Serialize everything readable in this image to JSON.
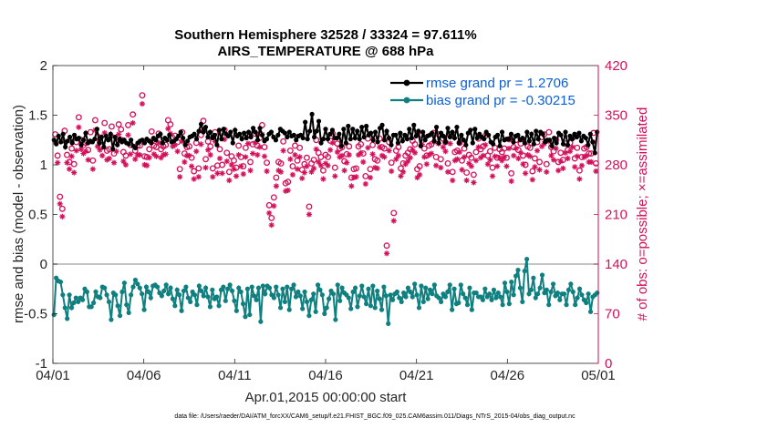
{
  "chart_data": {
    "type": "line",
    "title_line1": "Southern Hemisphere 32528 / 33324 = 97.611%",
    "title_line2": "AIRS_TEMPERATURE @ 688 hPa",
    "xlabel": "Apr.01,2015 00:00:00 start",
    "ylabel_left": "rmse and bias (model - observation)",
    "ylabel_right": "# of obs: o=possible; ×=assimilated",
    "ylim_left": [
      -1,
      2
    ],
    "ylim_right": [
      0,
      420
    ],
    "xlim": [
      0,
      30
    ],
    "x_ticks": [
      0,
      5,
      10,
      15,
      20,
      25,
      30
    ],
    "x_tick_labels": [
      "04/01",
      "04/06",
      "04/11",
      "04/16",
      "04/21",
      "04/26",
      "05/01"
    ],
    "y_ticks_left": [
      -1,
      -0.5,
      0,
      0.5,
      1,
      1.5,
      2
    ],
    "y_tick_labels_left": [
      "-1",
      "-0.5",
      "0",
      "0.5",
      "1",
      "1.5",
      "2"
    ],
    "y_ticks_right": [
      0,
      70,
      140,
      210,
      280,
      350,
      420
    ],
    "y_tick_labels_right": [
      "0",
      "70",
      "140",
      "210",
      "280",
      "350",
      "420"
    ],
    "zero_line": 0,
    "colors": {
      "rmse": "#000000",
      "bias": "#0f7f7f",
      "obs": "#d40f5a",
      "legend_text": "#0b5fd6",
      "zero_line": "#b0b0b0"
    },
    "series": [
      {
        "name": "rmse grand pr = 1.2706",
        "role": "rmse",
        "axis": "left",
        "values": [
          1.25,
          1.21,
          1.29,
          1.23,
          1.31,
          1.18,
          1.24,
          1.28,
          1.22,
          1.3,
          1.26,
          1.27,
          1.2,
          1.25,
          1.32,
          1.22,
          1.24,
          1.23,
          1.26,
          1.36,
          1.22,
          1.28,
          1.18,
          1.29,
          1.25,
          1.31,
          1.16,
          1.28,
          1.2,
          1.26,
          1.23,
          1.25,
          1.22,
          1.21,
          1.25,
          1.19,
          1.17,
          1.22,
          1.24,
          1.25,
          1.22,
          1.26,
          1.24,
          1.22,
          1.27,
          1.25,
          1.29,
          1.31,
          1.22,
          1.27,
          1.25,
          1.3,
          1.23,
          1.24,
          1.26,
          1.29,
          1.33,
          1.27,
          1.2,
          1.24,
          1.28,
          1.29,
          1.31,
          1.26,
          1.34,
          1.41,
          1.33,
          1.38,
          1.28,
          1.33,
          1.27,
          1.3,
          1.2,
          1.35,
          1.26,
          1.36,
          1.31,
          1.29,
          1.33,
          1.22,
          1.35,
          1.29,
          1.31,
          1.26,
          1.32,
          1.27,
          1.33,
          1.28,
          1.37,
          1.33,
          1.25,
          1.37,
          1.3,
          1.24,
          1.26,
          1.31,
          1.33,
          1.28,
          1.25,
          1.3,
          1.36,
          1.34,
          1.32,
          1.28,
          1.33,
          1.29,
          1.3,
          1.25,
          1.29,
          1.3,
          1.27,
          1.43,
          1.26,
          1.34,
          1.51,
          1.28,
          1.34,
          1.44,
          1.22,
          1.26,
          1.36,
          1.26,
          1.31,
          1.35,
          1.27,
          1.27,
          1.31,
          1.19,
          1.36,
          1.22,
          1.39,
          1.26,
          1.36,
          1.27,
          1.34,
          1.26,
          1.38,
          1.28,
          1.39,
          1.3,
          1.32,
          1.25,
          1.33,
          1.23,
          1.37,
          1.4,
          1.25,
          1.34,
          1.27,
          1.2,
          1.3,
          1.3,
          1.22,
          1.32,
          1.24,
          1.3,
          1.26,
          1.36,
          1.27,
          1.4,
          1.29,
          1.34,
          1.19,
          1.33,
          1.25,
          1.29,
          1.3,
          1.32,
          1.24,
          1.38,
          1.22,
          1.32,
          1.29,
          1.23,
          1.37,
          1.28,
          1.33,
          1.27,
          1.38,
          1.22,
          1.3,
          1.25,
          1.2,
          1.32,
          1.35,
          1.22,
          1.36,
          1.27,
          1.31,
          1.28,
          1.26,
          1.33,
          1.3,
          1.23,
          1.21,
          1.28,
          1.3,
          1.19,
          1.33,
          1.25,
          1.26,
          1.26,
          1.31,
          1.23,
          1.29,
          1.3,
          1.25,
          1.27,
          1.22,
          1.33,
          1.24,
          1.31,
          1.21,
          1.34,
          1.26,
          1.33,
          1.31,
          1.23,
          1.25,
          1.25,
          1.19,
          1.27,
          1.22,
          1.32,
          1.3,
          1.21,
          1.33,
          1.2,
          1.29,
          1.26,
          1.31,
          1.28,
          1.32,
          1.24,
          1.29,
          1.27,
          1.2,
          1.31,
          1.23,
          1.12,
          1.33
        ]
      },
      {
        "name": "bias grand pr = -0.30215",
        "role": "bias",
        "axis": "left",
        "values": [
          -0.51,
          -0.14,
          -0.17,
          -0.18,
          -0.31,
          -0.44,
          -0.55,
          -0.31,
          -0.44,
          -0.39,
          -0.34,
          -0.38,
          -0.34,
          -0.36,
          -0.25,
          -0.28,
          -0.43,
          -0.43,
          -0.39,
          -0.28,
          -0.33,
          -0.34,
          -0.23,
          -0.24,
          -0.31,
          -0.38,
          -0.56,
          -0.29,
          -0.31,
          -0.42,
          -0.52,
          -0.28,
          -0.19,
          -0.41,
          -0.49,
          -0.31,
          -0.23,
          -0.16,
          -0.2,
          -0.24,
          -0.3,
          -0.46,
          -0.23,
          -0.28,
          -0.34,
          -0.22,
          -0.21,
          -0.23,
          -0.29,
          -0.32,
          -0.27,
          -0.21,
          -0.3,
          -0.24,
          -0.35,
          -0.42,
          -0.26,
          -0.31,
          -0.47,
          -0.27,
          -0.23,
          -0.34,
          -0.38,
          -0.28,
          -0.31,
          -0.41,
          -0.22,
          -0.27,
          -0.32,
          -0.24,
          -0.33,
          -0.43,
          -0.26,
          -0.35,
          -0.33,
          -0.42,
          -0.26,
          -0.23,
          -0.37,
          -0.25,
          -0.21,
          -0.27,
          -0.37,
          -0.47,
          -0.24,
          -0.28,
          -0.4,
          -0.53,
          -0.25,
          -0.51,
          -0.23,
          -0.32,
          -0.36,
          -0.24,
          -0.58,
          -0.22,
          -0.3,
          -0.22,
          -0.24,
          -0.31,
          -0.34,
          -0.23,
          -0.31,
          -0.44,
          -0.25,
          -0.38,
          -0.23,
          -0.46,
          -0.25,
          -0.21,
          -0.33,
          -0.28,
          -0.32,
          -0.45,
          -0.28,
          -0.38,
          -0.52,
          -0.36,
          -0.3,
          -0.48,
          -0.21,
          -0.26,
          -0.31,
          -0.5,
          -0.44,
          -0.35,
          -0.27,
          -0.3,
          -0.56,
          -0.21,
          -0.37,
          -0.24,
          -0.29,
          -0.31,
          -0.34,
          -0.45,
          -0.28,
          -0.24,
          -0.43,
          -0.32,
          -0.22,
          -0.33,
          -0.4,
          -0.25,
          -0.42,
          -0.22,
          -0.44,
          -0.27,
          -0.35,
          -0.46,
          -0.23,
          -0.32,
          -0.6,
          -0.31,
          -0.36,
          -0.3,
          -0.28,
          -0.34,
          -0.38,
          -0.29,
          -0.33,
          -0.24,
          -0.28,
          -0.33,
          -0.2,
          -0.31,
          -0.44,
          -0.22,
          -0.38,
          -0.24,
          -0.35,
          -0.26,
          -0.3,
          -0.21,
          -0.32,
          -0.34,
          -0.38,
          -0.3,
          -0.33,
          -0.28,
          -0.21,
          -0.46,
          -0.25,
          -0.4,
          -0.39,
          -0.21,
          -0.3,
          -0.34,
          -0.41,
          -0.24,
          -0.46,
          -0.29,
          -0.29,
          -0.33,
          -0.33,
          -0.36,
          -0.25,
          -0.33,
          -0.3,
          -0.36,
          -0.26,
          -0.34,
          -0.29,
          -0.33,
          -0.41,
          -0.19,
          -0.28,
          -0.4,
          -0.18,
          -0.31,
          -0.12,
          -0.06,
          -0.24,
          -0.38,
          -0.07,
          0.05,
          -0.3,
          -0.26,
          -0.14,
          -0.34,
          -0.3,
          -0.24,
          -0.11,
          -0.29,
          -0.26,
          -0.41,
          -0.28,
          -0.2,
          -0.32,
          -0.29,
          -0.36,
          -0.3,
          -0.3,
          -0.41,
          -0.26,
          -0.2,
          -0.28,
          -0.41,
          -0.34,
          -0.25,
          -0.31,
          -0.36,
          -0.39,
          -0.3,
          -0.48,
          -0.33,
          -0.31,
          -0.29
        ]
      },
      {
        "name": "possible obs",
        "role": "possible",
        "axis": "right",
        "marker": "o",
        "values": [
          323,
          293,
          235,
          218,
          328,
          294,
          284,
          303,
          281,
          312,
          347,
          315,
          308,
          311,
          301,
          326,
          286,
          343,
          320,
          314,
          306,
          339,
          300,
          302,
          334,
          296,
          312,
          337,
          330,
          298,
          293,
          336,
          308,
          351,
          300,
          307,
          307,
          378,
          292,
          291,
          302,
          327,
          307,
          305,
          324,
          302,
          306,
          308,
          343,
          337,
          318,
          321,
          312,
          274,
          326,
          296,
          305,
          306,
          290,
          271,
          311,
          275,
          322,
          342,
          288,
          313,
          306,
          275,
          326,
          279,
          302,
          280,
          329,
          297,
          270,
          292,
          286,
          276,
          307,
          291,
          278,
          304,
          323,
          284,
          309,
          324,
          307,
          318,
          336,
          305,
          283,
          223,
          205,
          234,
          262,
          284,
          282,
          313,
          254,
          256,
          300,
          278,
          307,
          286,
          304,
          273,
          281,
          290,
          221,
          282,
          287,
          315,
          297,
          291,
          272,
          294,
          291,
          314,
          324,
          276,
          310,
          303,
          305,
          285,
          295,
          306,
          262,
          274,
          275,
          306,
          309,
          296,
          264,
          317,
          274,
          308,
          288,
          286,
          317,
          305,
          303,
          166,
          312,
          283,
          212,
          300,
          305,
          275,
          282,
          293,
          297,
          302,
          314,
          309,
          274,
          278,
          322,
          303,
          293,
          307,
          309,
          325,
          291,
          323,
          288,
          317,
          312,
          282,
          323,
          270,
          298,
          300,
          311,
          286,
          303,
          269,
          294,
          290,
          266,
          298,
          317,
          302,
          306,
          321,
          293,
          299,
          276,
          304,
          290,
          302,
          298,
          303,
          290,
          316,
          268,
          305,
          315,
          301,
          310,
          293,
          280,
          306,
          304,
          271,
          289,
          312,
          284,
          319,
          323,
          281,
          326,
          305,
          299,
          315,
          284,
          297,
          287,
          310,
          301,
          311,
          318,
          289,
          304,
          272,
          291,
          303,
          305,
          296,
          296,
          325,
          282
        ]
      },
      {
        "name": "assimilated obs",
        "role": "assimilated",
        "axis": "right",
        "marker": "x",
        "values": [
          312,
          283,
          225,
          207,
          313,
          283,
          274,
          292,
          269,
          300,
          333,
          302,
          296,
          299,
          287,
          313,
          274,
          329,
          306,
          301,
          293,
          325,
          287,
          289,
          320,
          283,
          299,
          323,
          316,
          285,
          280,
          322,
          295,
          339,
          288,
          294,
          294,
          366,
          280,
          279,
          290,
          314,
          295,
          292,
          311,
          290,
          294,
          295,
          331,
          324,
          306,
          308,
          299,
          263,
          313,
          284,
          293,
          293,
          278,
          260,
          299,
          263,
          309,
          329,
          276,
          301,
          294,
          263,
          313,
          268,
          289,
          268,
          316,
          285,
          258,
          280,
          274,
          264,
          294,
          278,
          267,
          291,
          310,
          272,
          296,
          311,
          294,
          305,
          323,
          292,
          271,
          212,
          195,
          222,
          250,
          272,
          270,
          300,
          243,
          244,
          288,
          266,
          294,
          274,
          291,
          261,
          269,
          278,
          210,
          270,
          275,
          302,
          284,
          279,
          260,
          282,
          279,
          301,
          311,
          264,
          298,
          291,
          293,
          272,
          283,
          294,
          250,
          262,
          263,
          294,
          297,
          284,
          253,
          304,
          262,
          295,
          276,
          275,
          305,
          293,
          291,
          155,
          300,
          271,
          201,
          288,
          293,
          264,
          270,
          281,
          285,
          290,
          301,
          297,
          262,
          266,
          309,
          291,
          281,
          294,
          296,
          312,
          279,
          310,
          276,
          305,
          299,
          270,
          310,
          258,
          286,
          288,
          298,
          273,
          291,
          258,
          282,
          278,
          255,
          286,
          305,
          290,
          293,
          308,
          281,
          287,
          264,
          292,
          278,
          290,
          286,
          291,
          278,
          303,
          257,
          293,
          303,
          289,
          297,
          281,
          268,
          294,
          292,
          259,
          277,
          300,
          273,
          306,
          310,
          270,
          313,
          293,
          287,
          303,
          272,
          285,
          275,
          297,
          289,
          299,
          305,
          277,
          292,
          260,
          279,
          291,
          293,
          284,
          284,
          312,
          271
        ]
      }
    ],
    "legend": {
      "placement": "top-right",
      "entries": [
        "rmse grand pr = 1.2706",
        "bias grand pr = -0.30215"
      ]
    },
    "footnote": "data file: /Users/raeder/DAI/ATM_forcXX/CAM6_setup/f.e21.FHIST_BGC.f09_025.CAM6assim.011/Diags_NTrS_2015-04/obs_diag_output.nc"
  }
}
